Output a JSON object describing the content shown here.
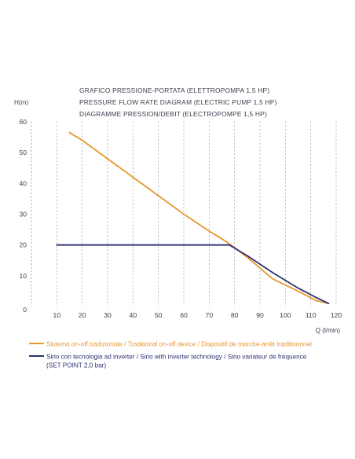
{
  "chart_data": {
    "type": "line",
    "title_lines": [
      "GRAFICO PRESSIONE-PORTATA (ELETTROPOMPA 1,5 HP)",
      "PRESSURE FLOW RATE DIAGRAM (ELECTRIC PUMP 1,5 HP)",
      "DIAGRAMME PRESSION/DEBIT (ELECTROPOMPE 1,5 HP)"
    ],
    "ylabel": "H(m)",
    "xlabel": "Q (l/min)",
    "xlim": [
      0,
      120
    ],
    "ylim": [
      0,
      60
    ],
    "x_ticks": [
      "0",
      "10",
      "20",
      "30",
      "40",
      "50",
      "60",
      "70",
      "80",
      "90",
      "100",
      "110",
      "120"
    ],
    "y_ticks": [
      "0",
      "10",
      "20",
      "30",
      "40",
      "50",
      "60"
    ],
    "grid": "vertical-dashed",
    "series": [
      {
        "name": "Sistema on-off tradizionale / Traditional on-off device / Dispositif de marche-arrêt traditionnnel",
        "color": "#e8962e",
        "x": [
          15,
          20,
          30,
          40,
          50,
          60,
          70,
          75,
          78,
          85,
          95,
          105,
          112,
          117
        ],
        "y": [
          56.5,
          54,
          48,
          42,
          36,
          30,
          24.5,
          22,
          20.3,
          16,
          9,
          5,
          2,
          1
        ]
      },
      {
        "name": "Sirio con tecnologia ad inverter / Sirio with inverter technology / Sirio variateur de fréquence",
        "name_line2": "(SET POINT 2,0 bar)",
        "color": "#2c3170",
        "x": [
          10,
          78,
          85,
          95,
          105,
          112,
          117
        ],
        "y": [
          20,
          20,
          16.5,
          11,
          6,
          3,
          1
        ]
      }
    ]
  }
}
